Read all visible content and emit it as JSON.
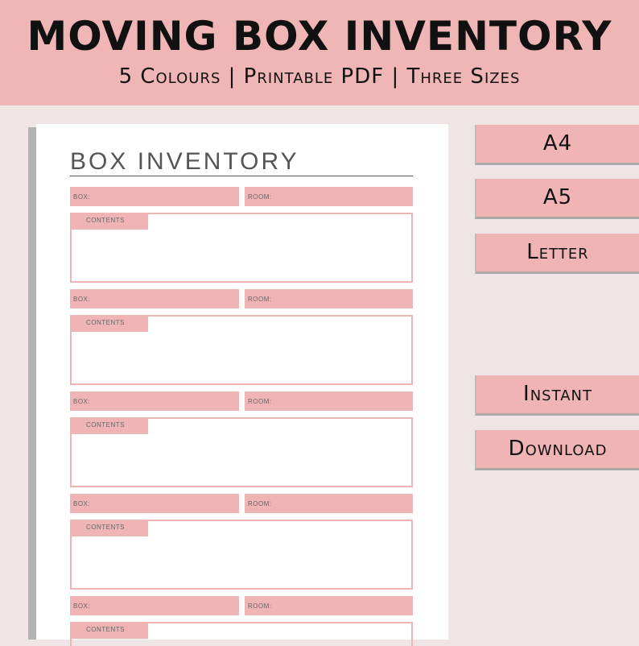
{
  "header": {
    "title": "MOVING BOX INVENTORY",
    "subtitle": "5 Colours | Printable PDF | Three Sizes"
  },
  "paper": {
    "title": "BOX INVENTORY",
    "box_label": "BOX:",
    "room_label": "ROOM:",
    "contents_label": "CONTENTS"
  },
  "buttons": [
    "A4",
    "A5",
    "Letter",
    "Instant",
    "Download"
  ],
  "colors": {
    "pink": "#f0b4b5",
    "background": "#f0e5e5"
  }
}
